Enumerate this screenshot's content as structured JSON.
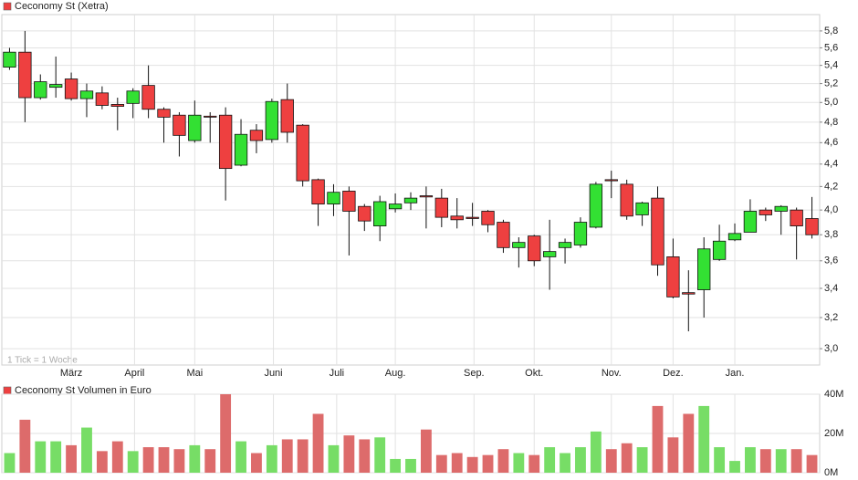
{
  "chart_data": [
    {
      "type": "candlestick",
      "title": "Ceconomy St (Xetra)",
      "annotation": "1 Tick = 1 Woche",
      "up_color": "#33e033",
      "down_color": "#ee4040",
      "log_scale": true,
      "grid": true,
      "open": [
        5.38,
        5.55,
        5.05,
        5.16,
        5.25,
        5.04,
        5.1,
        4.98,
        4.99,
        5.18,
        4.93,
        4.87,
        4.62,
        4.86,
        4.87,
        4.39,
        4.72,
        4.63,
        5.03,
        4.77,
        4.26,
        4.05,
        4.16,
        4.03,
        3.87,
        4.01,
        4.06,
        4.12,
        4.1,
        3.95,
        3.94,
        3.99,
        3.9,
        3.7,
        3.79,
        3.63,
        3.7,
        3.72,
        3.86,
        4.26,
        4.22,
        3.96,
        4.1,
        3.63,
        3.37,
        3.39,
        3.61,
        3.76,
        3.82,
        4.0,
        3.99,
        4.0,
        3.93
      ],
      "high": [
        5.6,
        5.8,
        5.3,
        5.5,
        5.32,
        5.2,
        5.17,
        5.05,
        5.15,
        5.4,
        4.95,
        4.9,
        5.02,
        4.9,
        4.95,
        4.83,
        4.78,
        5.04,
        5.2,
        4.78,
        4.27,
        4.22,
        4.2,
        4.05,
        4.12,
        4.14,
        4.15,
        4.2,
        4.18,
        4.1,
        4.06,
        4.0,
        3.92,
        3.78,
        3.8,
        3.92,
        3.77,
        3.94,
        4.24,
        4.34,
        4.26,
        4.07,
        4.2,
        3.77,
        3.53,
        3.78,
        3.88,
        3.89,
        4.09,
        4.02,
        4.04,
        4.02,
        4.11
      ],
      "low": [
        5.35,
        4.8,
        5.03,
        5.05,
        5.02,
        4.85,
        4.93,
        4.72,
        4.84,
        4.84,
        4.6,
        4.47,
        4.6,
        4.6,
        4.08,
        4.38,
        4.5,
        4.6,
        4.6,
        4.2,
        3.87,
        3.95,
        3.64,
        3.83,
        3.75,
        3.98,
        4.0,
        3.85,
        3.86,
        3.85,
        3.87,
        3.82,
        3.66,
        3.55,
        3.56,
        3.39,
        3.58,
        3.7,
        3.85,
        4.1,
        3.92,
        3.87,
        3.49,
        3.33,
        3.11,
        3.2,
        3.6,
        3.75,
        3.82,
        3.91,
        3.8,
        3.61,
        3.77
      ],
      "close": [
        5.55,
        5.05,
        5.22,
        5.19,
        5.04,
        5.12,
        4.97,
        4.96,
        5.12,
        4.93,
        4.85,
        4.67,
        4.87,
        4.85,
        4.36,
        4.68,
        4.62,
        5.01,
        4.7,
        4.25,
        4.05,
        4.15,
        3.99,
        3.91,
        4.07,
        4.05,
        4.1,
        4.11,
        3.94,
        3.92,
        3.93,
        3.88,
        3.7,
        3.74,
        3.6,
        3.67,
        3.74,
        3.9,
        4.22,
        4.25,
        3.95,
        4.06,
        3.57,
        3.34,
        3.36,
        3.69,
        3.75,
        3.81,
        3.99,
        3.96,
        4.03,
        3.87,
        3.8
      ],
      "xlim": [
        -0.5,
        52.5
      ],
      "xticks": [
        {
          "value": 4,
          "label": "März"
        },
        {
          "value": 8.1,
          "label": "April"
        },
        {
          "value": 12,
          "label": "Mai"
        },
        {
          "value": 17.1,
          "label": "Juni"
        },
        {
          "value": 21.2,
          "label": "Juli"
        },
        {
          "value": 25,
          "label": "Aug."
        },
        {
          "value": 30.1,
          "label": "Sep."
        },
        {
          "value": 34,
          "label": "Okt."
        },
        {
          "value": 39,
          "label": "Nov."
        },
        {
          "value": 43,
          "label": "Dez."
        },
        {
          "value": 47,
          "label": "Jan."
        }
      ],
      "ylim": [
        2.9,
        6.0
      ],
      "yticks": [
        {
          "value": 3.0,
          "label": "3,0"
        },
        {
          "value": 3.2,
          "label": "3,2"
        },
        {
          "value": 3.4,
          "label": "3,4"
        },
        {
          "value": 3.6,
          "label": "3,6"
        },
        {
          "value": 3.8,
          "label": "3,8"
        },
        {
          "value": 4.0,
          "label": "4,0"
        },
        {
          "value": 4.2,
          "label": "4,2"
        },
        {
          "value": 4.4,
          "label": "4,4"
        },
        {
          "value": 4.6,
          "label": "4,6"
        },
        {
          "value": 4.8,
          "label": "4,8"
        },
        {
          "value": 5.0,
          "label": "5,0"
        },
        {
          "value": 5.2,
          "label": "5,2"
        },
        {
          "value": 5.4,
          "label": "5,4"
        },
        {
          "value": 5.6,
          "label": "5,6"
        },
        {
          "value": 5.8,
          "label": "5,8"
        }
      ]
    },
    {
      "type": "bar",
      "title": "Ceconomy St Volumen in Euro",
      "up_color": "#77dd66",
      "down_color": "#dd6b6b",
      "grid": true,
      "values": [
        10,
        27,
        16,
        16,
        14,
        23,
        11,
        16,
        11,
        13,
        13,
        12,
        14,
        12,
        40,
        16,
        10,
        14,
        17,
        17,
        30,
        14,
        19,
        17,
        18,
        7,
        7,
        22,
        9,
        10,
        8,
        9,
        12,
        10,
        9,
        13,
        10,
        13,
        21,
        12,
        15,
        13,
        34,
        18,
        30,
        34,
        13,
        6,
        13,
        12,
        12,
        12,
        9
      ],
      "ylim": [
        0,
        40
      ],
      "yticks": [
        {
          "value": 0,
          "label": "0M"
        },
        {
          "value": 20,
          "label": "20M"
        },
        {
          "value": 40,
          "label": "40M"
        }
      ]
    }
  ]
}
